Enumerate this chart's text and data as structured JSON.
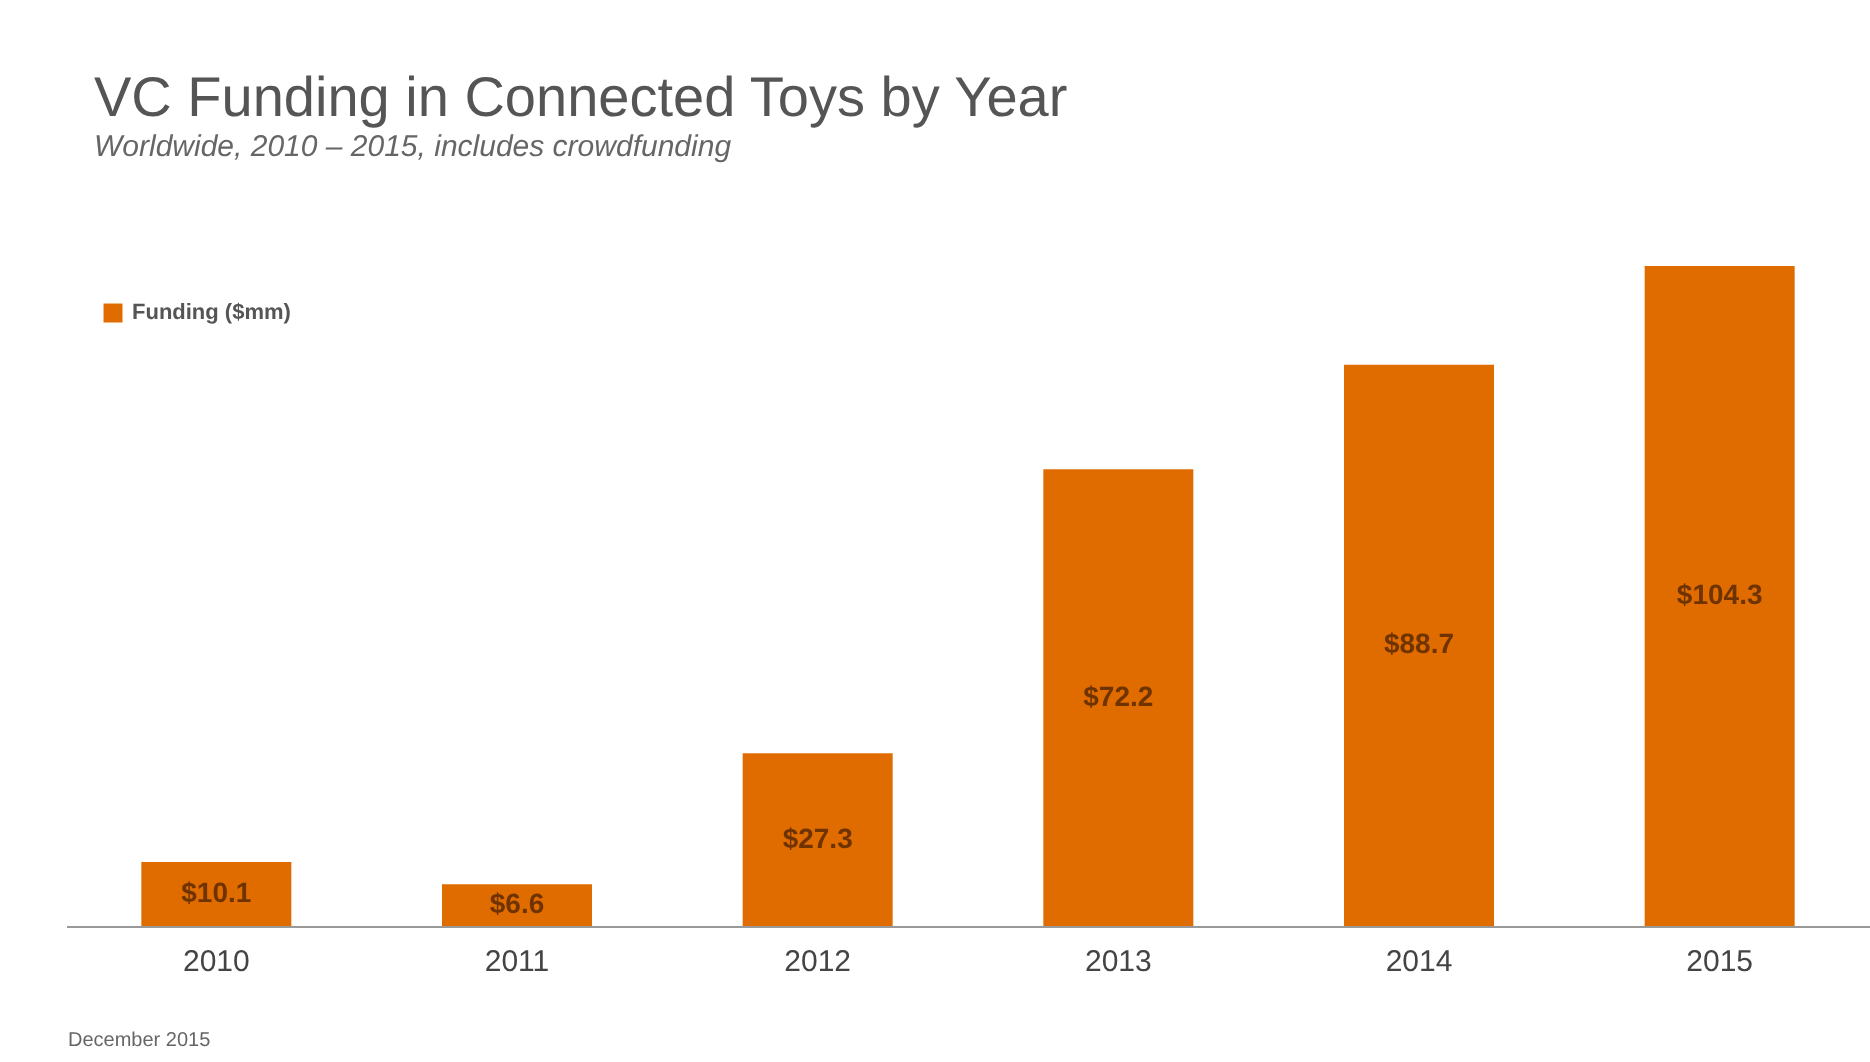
{
  "chart_data": {
    "type": "bar",
    "title": "VC Funding in Connected Toys by Year",
    "subtitle": "Worldwide, 2010 – 2015, includes crowdfunding",
    "categories": [
      "2010",
      "2011",
      "2012",
      "2013",
      "2014",
      "2015"
    ],
    "series": [
      {
        "name": "Funding ($mm)",
        "color": "#e06c00",
        "values": [
          10.1,
          6.6,
          27.3,
          72.2,
          88.7,
          104.3
        ],
        "value_labels": [
          "$10.1",
          "$6.6",
          "$27.3",
          "$72.2",
          "$88.7",
          "$104.3"
        ]
      }
    ],
    "legend": "top left",
    "tick_labels": "x",
    "annotations": [
      "December 2015"
    ]
  }
}
